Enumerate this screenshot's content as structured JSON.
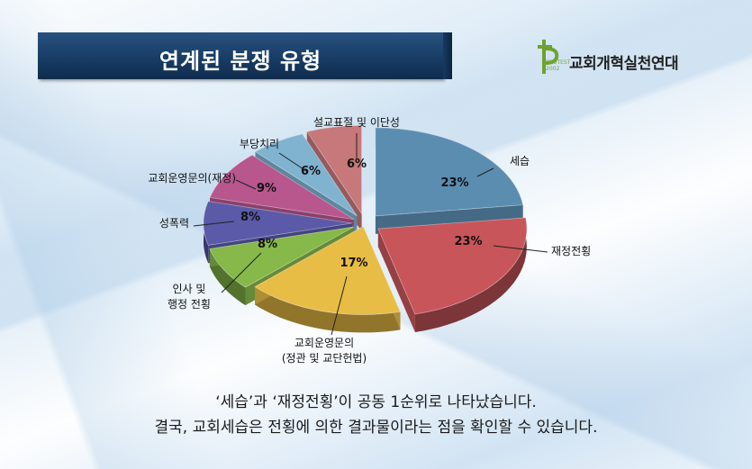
{
  "title": "연계된 분쟁 유형",
  "logo": {
    "name": "교회개혁실천연대",
    "sub_line1": "PROTEST",
    "sub_line2": "2002"
  },
  "chart_data": {
    "type": "pie",
    "slices": [
      {
        "label": "세습",
        "value": 23,
        "value_label": "23%",
        "color": "#5b8db1"
      },
      {
        "label": "재정전횡",
        "value": 23,
        "value_label": "23%",
        "color": "#c8555a"
      },
      {
        "label": "교회운영문의\n(정관 및 교단헌법)",
        "value": 17,
        "value_label": "17%",
        "color": "#e8bd45"
      },
      {
        "label": "인사 및\n행정 전횡",
        "value": 8,
        "value_label": "8%",
        "color": "#86b84a"
      },
      {
        "label": "성폭력",
        "value": 8,
        "value_label": "8%",
        "color": "#5a5aa8"
      },
      {
        "label": "교회운영문의(재정)",
        "value": 9,
        "value_label": "9%",
        "color": "#b8568e"
      },
      {
        "label": "부당치리",
        "value": 6,
        "value_label": "6%",
        "color": "#7fb3d0"
      },
      {
        "label": "설교표절 및 이단성",
        "value": 6,
        "value_label": "6%",
        "color": "#c7787a"
      }
    ]
  },
  "caption": {
    "line1": "‘세습’과 ‘재정전횡’이 공동 1순위로 나타났습니다.",
    "line2": "결국, 교회세습은 전횡에 의한 결과물이라는 점을 확인할 수 있습니다."
  }
}
